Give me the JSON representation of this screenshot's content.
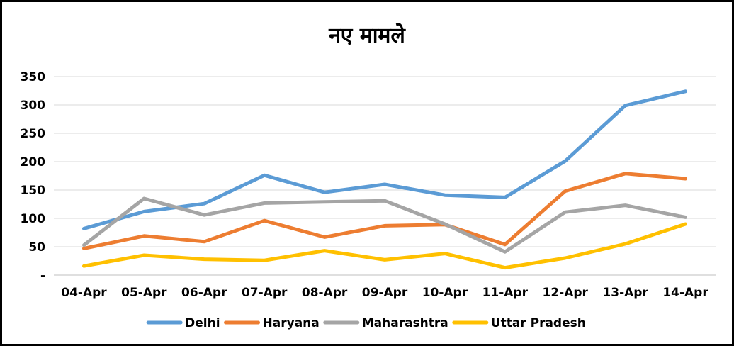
{
  "chart_data": {
    "type": "line",
    "title": "नए मामले",
    "xlabel": "",
    "ylabel": "",
    "categories": [
      "04-Apr",
      "05-Apr",
      "06-Apr",
      "07-Apr",
      "08-Apr",
      "09-Apr",
      "10-Apr",
      "11-Apr",
      "12-Apr",
      "13-Apr",
      "14-Apr"
    ],
    "ylim": [
      0,
      350
    ],
    "yticks": [
      0,
      50,
      100,
      150,
      200,
      250,
      300,
      350
    ],
    "ytick_labels": [
      "-",
      "50",
      "100",
      "150",
      "200",
      "250",
      "300",
      "350"
    ],
    "grid": true,
    "legend_position": "bottom",
    "series": [
      {
        "name": "Delhi",
        "color": "#5B9BD5",
        "values": [
          82,
          112,
          126,
          176,
          146,
          160,
          141,
          137,
          201,
          299,
          324
        ]
      },
      {
        "name": "Haryana",
        "color": "#ED7D31",
        "values": [
          47,
          69,
          59,
          96,
          67,
          87,
          89,
          54,
          148,
          179,
          170
        ]
      },
      {
        "name": "Maharashtra",
        "color": "#A5A5A5",
        "values": [
          53,
          135,
          106,
          127,
          129,
          131,
          90,
          41,
          111,
          123,
          102
        ]
      },
      {
        "name": "Uttar Pradesh",
        "color": "#FFC000",
        "values": [
          16,
          35,
          28,
          26,
          43,
          27,
          38,
          13,
          30,
          55,
          90
        ]
      }
    ]
  }
}
